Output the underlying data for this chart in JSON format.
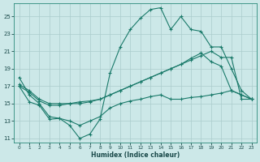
{
  "xlabel": "Humidex (Indice chaleur)",
  "bg_color": "#cce8e8",
  "grid_color": "#aacccc",
  "line_color": "#1a7a6a",
  "xlim": [
    -0.5,
    23.5
  ],
  "ylim": [
    10.5,
    26.5
  ],
  "xticks": [
    0,
    1,
    2,
    3,
    4,
    5,
    6,
    7,
    8,
    9,
    10,
    11,
    12,
    13,
    14,
    15,
    16,
    17,
    18,
    19,
    20,
    21,
    22,
    23
  ],
  "yticks": [
    11,
    13,
    15,
    17,
    19,
    21,
    23,
    25
  ],
  "line1_x": [
    0,
    1,
    2,
    3,
    4,
    5,
    6,
    7,
    8,
    9,
    10,
    11,
    12,
    13,
    14,
    15,
    16,
    17,
    18,
    19,
    20,
    21,
    22,
    23
  ],
  "line1_y": [
    18.0,
    16.0,
    15.0,
    13.5,
    13.3,
    12.5,
    11.0,
    11.5,
    13.2,
    18.5,
    21.5,
    23.5,
    24.8,
    25.8,
    26.0,
    23.5,
    25.0,
    23.5,
    23.3,
    21.5,
    21.5,
    19.0,
    16.5,
    15.5
  ],
  "line2_x": [
    0,
    1,
    2,
    3,
    4,
    5,
    6,
    7,
    8,
    9,
    10,
    11,
    12,
    13,
    14,
    15,
    16,
    17,
    18,
    19,
    20,
    21,
    22,
    23
  ],
  "line2_y": [
    17.2,
    16.5,
    15.5,
    15.0,
    15.0,
    15.0,
    15.2,
    15.3,
    15.5,
    16.0,
    16.5,
    17.0,
    17.5,
    18.0,
    18.5,
    19.0,
    19.5,
    20.0,
    20.5,
    21.0,
    20.3,
    20.3,
    15.5,
    15.5
  ],
  "line3_x": [
    0,
    1,
    2,
    3,
    4,
    5,
    6,
    7,
    8,
    9,
    10,
    11,
    12,
    13,
    14,
    15,
    16,
    17,
    18,
    19,
    20,
    21,
    22,
    23
  ],
  "line3_y": [
    17.0,
    16.3,
    15.3,
    14.8,
    14.8,
    15.0,
    15.0,
    15.2,
    15.5,
    16.0,
    16.5,
    17.0,
    17.5,
    18.0,
    18.5,
    19.0,
    19.5,
    20.2,
    20.8,
    19.8,
    19.3,
    16.5,
    16.0,
    15.5
  ],
  "line4_x": [
    0,
    1,
    2,
    3,
    4,
    5,
    6,
    7,
    8,
    9,
    10,
    11,
    12,
    13,
    14,
    15,
    16,
    17,
    18,
    19,
    20,
    21,
    22,
    23
  ],
  "line4_y": [
    17.0,
    15.2,
    14.8,
    13.2,
    13.3,
    13.0,
    12.5,
    13.0,
    13.5,
    14.5,
    15.0,
    15.3,
    15.5,
    15.8,
    16.0,
    15.5,
    15.5,
    15.7,
    15.8,
    16.0,
    16.2,
    16.5,
    16.0,
    15.5
  ]
}
